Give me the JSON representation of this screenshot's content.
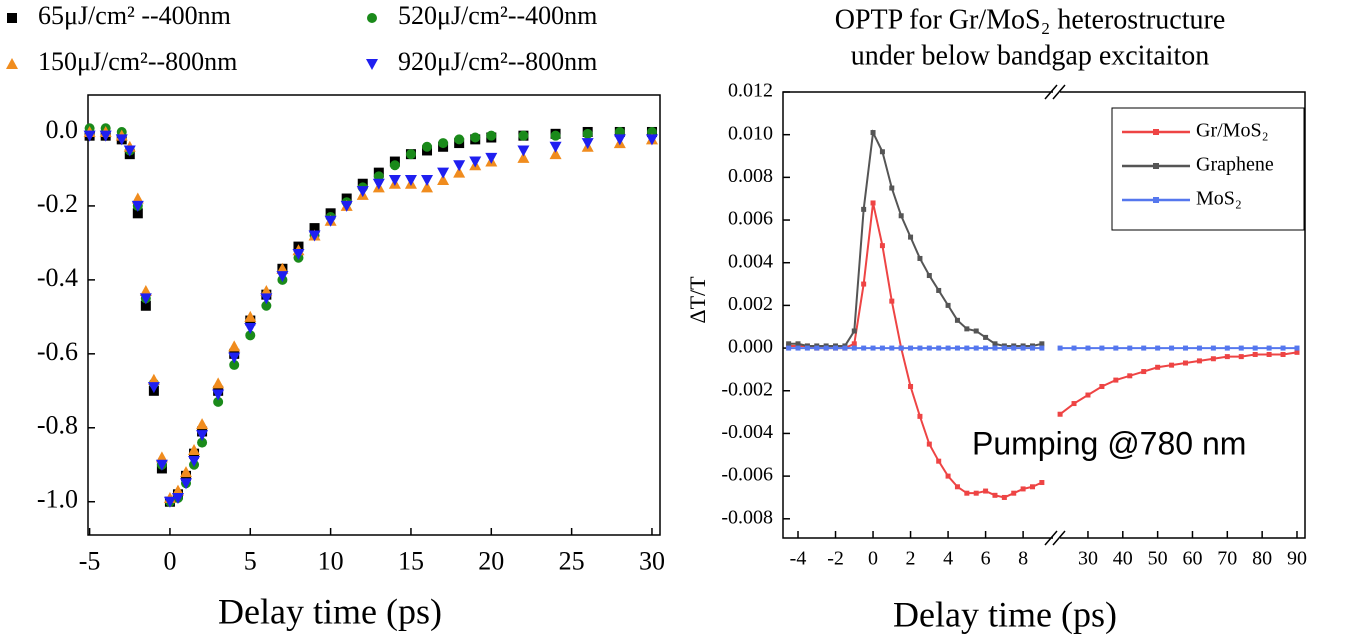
{
  "chart_data": [
    {
      "type": "scatter",
      "xlabel": "Delay time (ps)",
      "x": [
        -5,
        -4,
        -3,
        -2.5,
        -2,
        -1.5,
        -1,
        -0.5,
        0,
        0.5,
        1,
        1.5,
        2,
        3,
        4,
        5,
        6,
        7,
        8,
        9,
        10,
        11,
        12,
        13,
        14,
        15,
        16,
        17,
        18,
        19,
        20,
        22,
        24,
        26,
        28,
        30
      ],
      "series": [
        {
          "name": "65μJ/cm² --400nm",
          "color": "#000000",
          "marker": "square",
          "values": [
            -0.01,
            -0.01,
            -0.02,
            -0.06,
            -0.22,
            -0.47,
            -0.7,
            -0.91,
            -1.0,
            -0.98,
            -0.93,
            -0.87,
            -0.81,
            -0.7,
            -0.6,
            -0.51,
            -0.44,
            -0.37,
            -0.31,
            -0.26,
            -0.22,
            -0.18,
            -0.14,
            -0.11,
            -0.08,
            -0.06,
            -0.05,
            -0.04,
            -0.03,
            -0.02,
            -0.015,
            -0.01,
            -0.005,
            0,
            0,
            0
          ]
        },
        {
          "name": "520μJ/cm²--400nm",
          "color": "#1a8a1a",
          "marker": "circle",
          "values": [
            0.01,
            0.01,
            0,
            -0.05,
            -0.2,
            -0.45,
            -0.68,
            -0.9,
            -1.0,
            -0.99,
            -0.95,
            -0.9,
            -0.84,
            -0.73,
            -0.63,
            -0.55,
            -0.47,
            -0.4,
            -0.34,
            -0.28,
            -0.23,
            -0.19,
            -0.15,
            -0.12,
            -0.09,
            -0.06,
            -0.04,
            -0.03,
            -0.02,
            -0.015,
            -0.01,
            -0.01,
            -0.01,
            -0.005,
            0,
            0
          ]
        },
        {
          "name": "150μJ/cm²--800nm",
          "color": "#f08c1e",
          "marker": "triangle-up",
          "values": [
            0,
            0,
            -0.01,
            -0.04,
            -0.18,
            -0.43,
            -0.67,
            -0.88,
            -0.99,
            -0.97,
            -0.92,
            -0.86,
            -0.79,
            -0.68,
            -0.58,
            -0.5,
            -0.43,
            -0.37,
            -0.32,
            -0.28,
            -0.24,
            -0.2,
            -0.17,
            -0.15,
            -0.14,
            -0.14,
            -0.15,
            -0.13,
            -0.11,
            -0.09,
            -0.08,
            -0.07,
            -0.06,
            -0.04,
            -0.03,
            -0.02
          ]
        },
        {
          "name": "920μJ/cm²--800nm",
          "color": "#1f1ff0",
          "marker": "triangle-down",
          "values": [
            -0.01,
            -0.01,
            -0.02,
            -0.05,
            -0.2,
            -0.45,
            -0.69,
            -0.9,
            -1.0,
            -0.99,
            -0.95,
            -0.89,
            -0.82,
            -0.71,
            -0.61,
            -0.53,
            -0.45,
            -0.39,
            -0.33,
            -0.28,
            -0.24,
            -0.2,
            -0.16,
            -0.14,
            -0.13,
            -0.13,
            -0.13,
            -0.11,
            -0.09,
            -0.08,
            -0.07,
            -0.05,
            -0.04,
            -0.03,
            -0.02,
            -0.02
          ]
        }
      ],
      "xlim": [
        -5.1,
        30.5
      ],
      "xticks": [
        -5,
        0,
        5,
        10,
        15,
        20,
        25,
        30
      ],
      "ylim": [
        -1.09,
        0.1
      ],
      "yticks": [
        {
          "value": 0,
          "label": "0.0"
        },
        -0.2,
        -0.4,
        -0.6,
        -0.8,
        {
          "value": -1,
          "label": "-1.0"
        }
      ]
    },
    {
      "type": "line",
      "title": [
        "OPTP for Gr/MoS₂ heterostructure",
        "under below bandgap excitaiton"
      ],
      "xlabel": "Delay time (ps)",
      "ylabel": "ΔT/T",
      "annotation": "Pumping @780 nm",
      "x": [
        -4.5,
        -4,
        -3.5,
        -3,
        -2.5,
        -2,
        -1.5,
        -1,
        -0.5,
        0,
        0.5,
        1,
        1.5,
        2,
        2.5,
        3,
        3.5,
        4,
        4.5,
        5,
        5.5,
        6,
        6.5,
        7,
        7.5,
        8,
        8.5,
        9,
        22,
        26,
        30,
        34,
        38,
        42,
        46,
        50,
        54,
        58,
        62,
        66,
        70,
        74,
        78,
        82,
        86,
        90
      ],
      "series": [
        {
          "name": "Gr/MoS₂",
          "color": "#ee4444",
          "values": [
            0.0001,
            0.0001,
            0.0001,
            0,
            0,
            0,
            0,
            0.0002,
            0.003,
            0.0068,
            0.0048,
            0.0022,
            0,
            -0.0018,
            -0.0032,
            -0.0045,
            -0.0053,
            -0.006,
            -0.0065,
            -0.0068,
            -0.0068,
            -0.0067,
            -0.0069,
            -0.007,
            -0.0068,
            -0.0066,
            -0.0065,
            -0.0063,
            -0.0031,
            -0.0026,
            -0.0022,
            -0.0018,
            -0.0015,
            -0.0013,
            -0.0011,
            -0.0009,
            -0.0008,
            -0.0007,
            -0.0006,
            -0.0005,
            -0.0004,
            -0.0004,
            -0.0003,
            -0.0003,
            -0.0003,
            -0.0002
          ]
        },
        {
          "name": "Graphene",
          "color": "#555555",
          "values": [
            0.0002,
            0.0002,
            0.0001,
            0.0001,
            0.0001,
            0.0001,
            0.0001,
            0.0008,
            0.0065,
            0.0101,
            0.0092,
            0.0075,
            0.0062,
            0.0052,
            0.0042,
            0.0034,
            0.0027,
            0.002,
            0.0013,
            0.0009,
            0.0008,
            0.0005,
            0.0002,
            0.0001,
            0.0001,
            0.0001,
            0.0001,
            0.0002,
            null,
            null,
            null,
            null,
            null,
            null,
            null,
            null,
            null,
            null,
            null,
            null,
            null,
            null,
            null,
            null,
            null,
            null
          ]
        },
        {
          "name": "MoS₂",
          "color": "#5577ee",
          "values": [
            0,
            0,
            0,
            0,
            0,
            0,
            0,
            0,
            0,
            0,
            0,
            0,
            0,
            0,
            0,
            0,
            0,
            0,
            0,
            0,
            0,
            0,
            0,
            0,
            0,
            0,
            0,
            0,
            0,
            0,
            0,
            0,
            0,
            0,
            0,
            0,
            0,
            0,
            0,
            0,
            0,
            0,
            0,
            0,
            0,
            0
          ]
        }
      ],
      "xlim": [
        -4.8,
        92.3
      ],
      "xbreak": [
        9.7,
        21.4
      ],
      "xticks": [
        -4,
        -2,
        0,
        2,
        4,
        6,
        8,
        30,
        40,
        50,
        60,
        70,
        80,
        90
      ],
      "ylim": [
        -0.0089,
        0.012
      ],
      "yticks": [
        0.012,
        {
          "value": 0.01,
          "label": "0.010"
        },
        0.008,
        0.006,
        0.004,
        0.002,
        {
          "value": 0,
          "label": "0.000"
        },
        -0.002,
        -0.004,
        -0.006,
        -0.008
      ],
      "legend": "upper right"
    }
  ]
}
